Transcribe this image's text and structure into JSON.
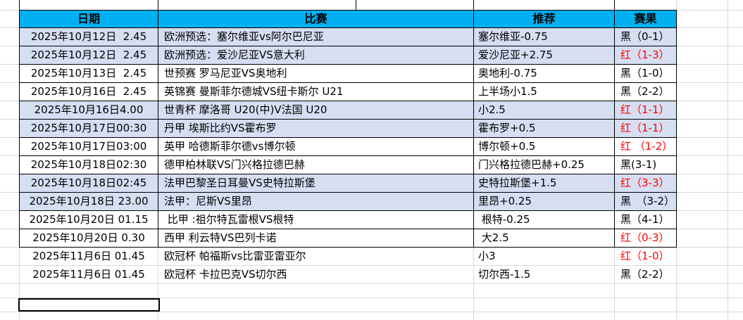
{
  "sheet": {
    "headers": {
      "date": "日期",
      "match": "比赛",
      "tip": "推荐",
      "result": "赛果"
    },
    "rows": [
      {
        "date": "2025年10月12日  2.45",
        "match": "欧洲预选：塞尔维亚vs阿尔巴尼亚",
        "tip": "塞尔维亚-0.75",
        "result": "黑（0-1）",
        "result_color": "black",
        "shaded": true,
        "unbordered": false
      },
      {
        "date": "2025年10月12日  2.45",
        "match": "欧洲预选：爱沙尼亚VS意大利",
        "tip": "爱沙尼亚+2.75",
        "result": "红（1-3）",
        "result_color": "red",
        "shaded": true,
        "unbordered": false
      },
      {
        "date": "2025年10月13日  2.45",
        "match": "世预赛 罗马尼亚VS奥地利",
        "tip": "奥地利-0.75",
        "result": "黑（1-0）",
        "result_color": "black",
        "shaded": false,
        "unbordered": false
      },
      {
        "date": "2025年10月16日  2.45",
        "match": "英锦赛 曼斯菲尔德城VS纽卡斯尔 U21",
        "tip": "上半场小1.5",
        "result": "黑（2-2）",
        "result_color": "black",
        "shaded": false,
        "unbordered": false
      },
      {
        "date": "2025年10月16日4.00",
        "match": "世青杯 摩洛哥 U20(中)V法国 U20",
        "tip": "小2.5",
        "result": "红（1-1）",
        "result_color": "red",
        "shaded": true,
        "unbordered": false
      },
      {
        "date": "2025年10月17日00:30",
        "match": "丹甲 埃斯比约VS霍布罗",
        "tip": "霍布罗+0.5",
        "result": "红（1-1）",
        "result_color": "red",
        "shaded": true,
        "unbordered": false
      },
      {
        "date": "2025年10月17日03:00",
        "match": "英甲 哈德斯菲尔德vs博尔顿",
        "tip": "博尔顿+0.5",
        "result": "红 （1-2）",
        "result_color": "red",
        "shaded": false,
        "unbordered": false
      },
      {
        "date": "2025年10月18日02:30",
        "match": "德甲柏林联VS门兴格拉德巴赫",
        "tip": "门兴格拉德巴赫+0.25",
        "result": "黑(3-1)",
        "result_color": "black",
        "shaded": false,
        "unbordered": false
      },
      {
        "date": "2025年10月18日02:45",
        "match": "法甲巴黎圣日耳曼VS史特拉斯堡",
        "tip": "史特拉斯堡+1.5",
        "result": "红（3-3）",
        "result_color": "red",
        "shaded": true,
        "unbordered": false
      },
      {
        "date": "2025年10月18日 23.00",
        "match": "法甲：尼斯VS里昂",
        "tip": "里昂+0.25",
        "result": "黑　（3-2）",
        "result_color": "black",
        "shaded": true,
        "unbordered": false
      },
      {
        "date": "2025年10月20日 01.15",
        "match": " 比甲 :祖尔特瓦雷根VS根特",
        "tip": " 根特-0.25",
        "result": "黑（4-1）",
        "result_color": "black",
        "shaded": false,
        "unbordered": false
      },
      {
        "date": "2025年10月20日 0.30",
        "match": "西甲 利云特VS巴列卡诺",
        "tip": " 大2.5",
        "result": "红（0-3）",
        "result_color": "red",
        "shaded": false,
        "unbordered": false
      },
      {
        "date": "2025年11月6日 01.45",
        "match": "欧冠杯 帕福斯vs比雷亚雷亚尔",
        "tip": "小3",
        "result": "红（1-0）",
        "result_color": "red",
        "shaded": false,
        "unbordered": true
      },
      {
        "date": "2025年11月6日 01.45",
        "match": "欧冠杯 卡拉巴克VS切尔西",
        "tip": "切尔西-1.5",
        "result": "黑（2-2）",
        "result_color": "black",
        "shaded": false,
        "unbordered": true
      }
    ],
    "colors": {
      "header_bg": "#00B0F0",
      "shaded_row_bg": "#D6DEF2",
      "red_result": "#FF0000",
      "black_result": "#000000",
      "gridline": "#D8D8D8",
      "table_border": "#000000"
    }
  }
}
